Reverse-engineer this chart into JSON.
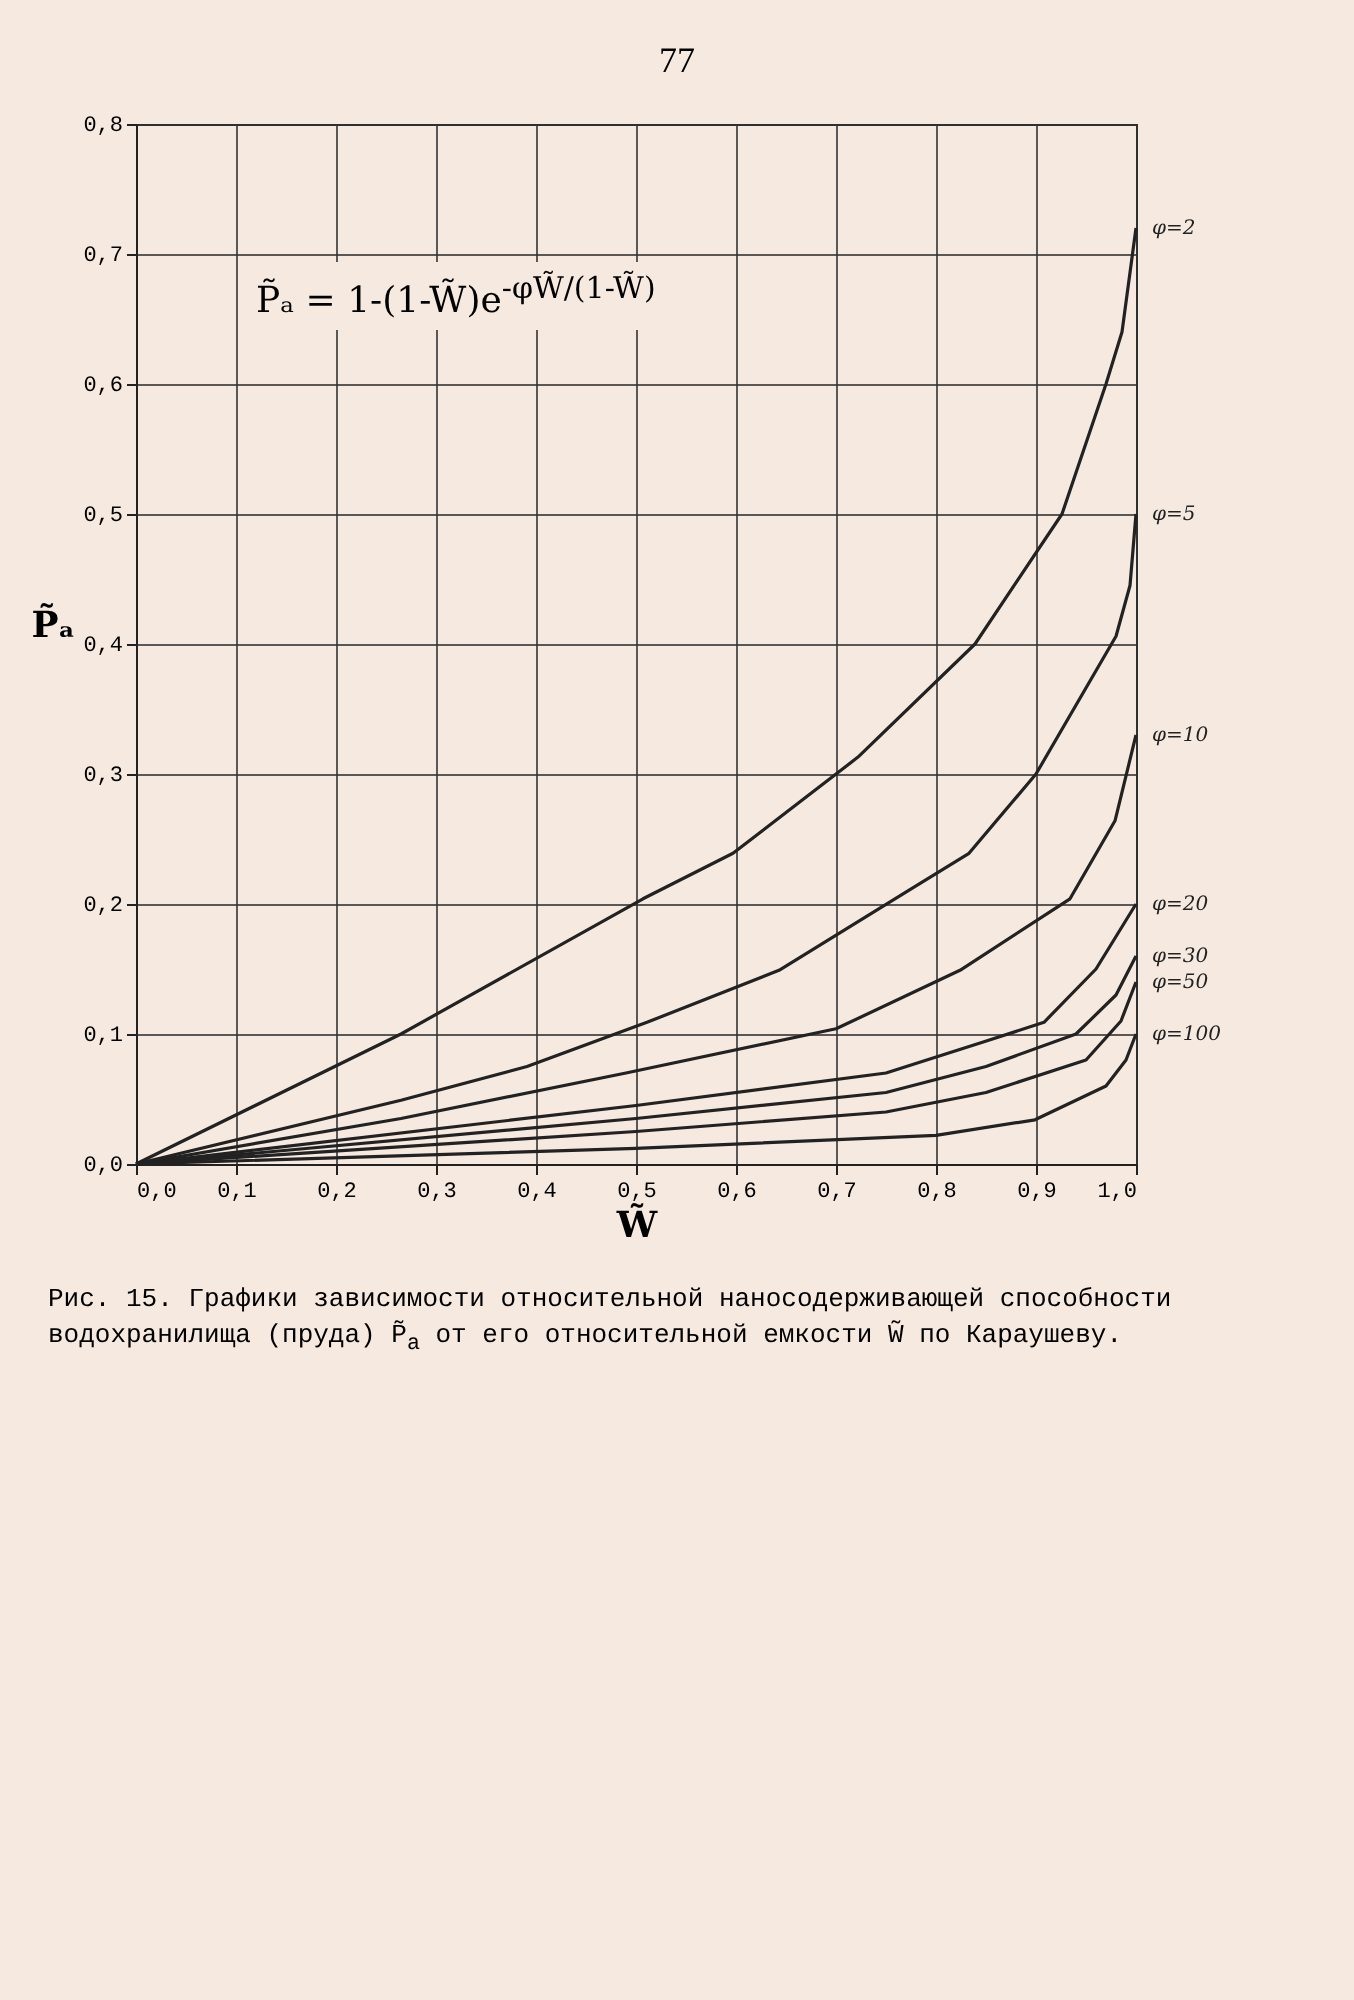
{
  "chart_data": {
    "type": "line",
    "xlabel": "W̃",
    "ylabel": "P̃ₐ",
    "annotations": [
      "77",
      "P̃ₐ = 1-(1-W̃)e$^{-φW̃/(1-W̃)}$",
      "Рис. 15. Графики зависимости относительной наносодерживающей способности водохранилища (пруда) P̃$_{a}$ от его относительной емкости W̃ по Караушеву."
    ],
    "xlim": [
      0,
      1.0
    ],
    "xticks": [
      {
        "value": 0,
        "label": "0,0"
      },
      {
        "value": 0.1,
        "label": "0,1"
      },
      {
        "value": 0.2,
        "label": "0,2"
      },
      {
        "value": 0.3,
        "label": "0,3"
      },
      {
        "value": 0.4,
        "label": "0,4"
      },
      {
        "value": 0.5,
        "label": "0,5"
      },
      {
        "value": 0.6,
        "label": "0,6"
      },
      {
        "value": 0.7,
        "label": "0,7"
      },
      {
        "value": 0.8,
        "label": "0,8"
      },
      {
        "value": 0.9,
        "label": "0,9"
      },
      {
        "value": 1.0,
        "label": "1,0"
      }
    ],
    "ylim": [
      0,
      0.8
    ],
    "yticks": [
      {
        "value": 0,
        "label": "0,0"
      },
      {
        "value": 0.1,
        "label": "0,1"
      },
      {
        "value": 0.2,
        "label": "0,2"
      },
      {
        "value": 0.3,
        "label": "0,3"
      },
      {
        "value": 0.4,
        "label": "0,4"
      },
      {
        "value": 0.5,
        "label": "0,5"
      },
      {
        "value": 0.6,
        "label": "0,6"
      },
      {
        "value": 0.7,
        "label": "0,7"
      },
      {
        "value": 0.8,
        "label": "0,8"
      }
    ],
    "grid": true,
    "legend": false,
    "marker": "none",
    "line_style": "solid",
    "series": [
      {
        "name": "φ=2",
        "color": "#222222",
        "x": [
          0,
          0.265,
          0.507,
          0.597,
          0.722,
          0.839,
          0.926,
          0.97,
          0.986,
          1.0
        ],
        "values": [
          0,
          0.1,
          0.204,
          0.239,
          0.313,
          0.4,
          0.5,
          0.6,
          0.64,
          0.72
        ]
      },
      {
        "name": "φ=5",
        "color": "#222222",
        "x": [
          0,
          0.265,
          0.391,
          0.511,
          0.643,
          0.778,
          0.833,
          0.9,
          0.98,
          0.994,
          1.0
        ],
        "values": [
          0,
          0.049,
          0.075,
          0.109,
          0.149,
          0.213,
          0.239,
          0.3,
          0.406,
          0.445,
          0.5
        ]
      },
      {
        "name": "φ=10",
        "color": "#222222",
        "x": [
          0,
          0.265,
          0.49,
          0.7,
          0.824,
          0.934,
          0.979,
          1.0
        ],
        "values": [
          0,
          0.035,
          0.07,
          0.104,
          0.149,
          0.204,
          0.264,
          0.33
        ]
      },
      {
        "name": "φ=20",
        "color": "#222222",
        "x": [
          0,
          0.5,
          0.75,
          0.848,
          0.908,
          0.96,
          1.0
        ],
        "values": [
          0,
          0.045,
          0.07,
          0.094,
          0.109,
          0.15,
          0.2
        ]
      },
      {
        "name": "φ=30",
        "color": "#222222",
        "x": [
          0,
          0.5,
          0.75,
          0.85,
          0.94,
          0.98,
          1.0
        ],
        "values": [
          0,
          0.035,
          0.055,
          0.075,
          0.1,
          0.13,
          0.16
        ]
      },
      {
        "name": "φ=50",
        "color": "#222222",
        "x": [
          0,
          0.5,
          0.75,
          0.85,
          0.95,
          0.985,
          1.0
        ],
        "values": [
          0,
          0.025,
          0.04,
          0.055,
          0.08,
          0.11,
          0.14
        ]
      },
      {
        "name": "φ=100",
        "color": "#222222",
        "x": [
          0,
          0.5,
          0.8,
          0.899,
          0.97,
          0.99,
          1.0
        ],
        "values": [
          0,
          0.012,
          0.022,
          0.034,
          0.06,
          0.08,
          0.1
        ]
      }
    ]
  }
}
